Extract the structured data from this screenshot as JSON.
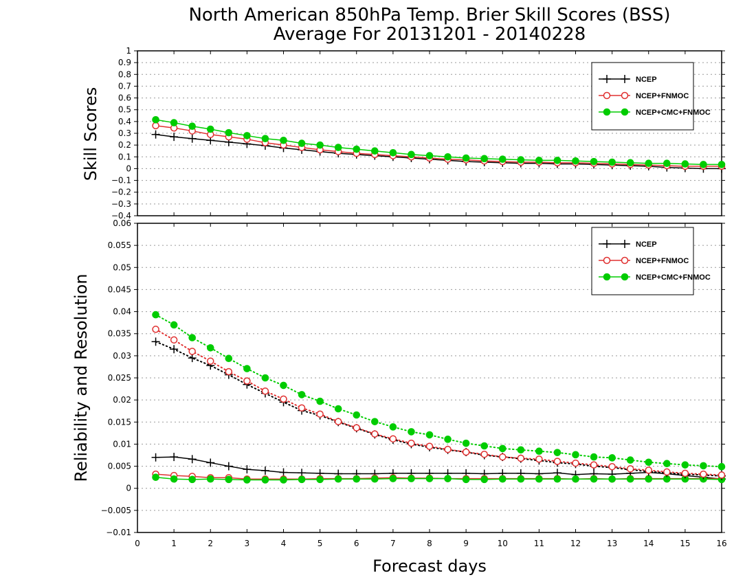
{
  "title_line1": "North American 850hPa Temp. Brier Skill Scores (BSS)",
  "title_line2": "Average For 20131201 - 20140228",
  "xlabel": "Forecast days",
  "colors": {
    "ncep": "#000000",
    "ncep_fnmoc": "#e03030",
    "ncep_cmc_fnmoc": "#00cc00",
    "grid": "#999999"
  },
  "chart_data": [
    {
      "type": "line",
      "ylabel": "Skill Scores",
      "xlim": [
        0,
        16
      ],
      "ylim": [
        -0.4,
        1.0
      ],
      "y_ticks": [
        "−0.4",
        "−0.3",
        "−0.2",
        "−0.1",
        "0",
        "0.1",
        "0.2",
        "0.3",
        "0.4",
        "0.5",
        "0.6",
        "0.7",
        "0.8",
        "0.9",
        "1"
      ],
      "x_ticks": [
        "0",
        "1",
        "2",
        "3",
        "4",
        "5",
        "6",
        "7",
        "8",
        "9",
        "10",
        "11",
        "12",
        "13",
        "14",
        "15",
        "16"
      ],
      "grid": "horizontal dotted",
      "legend_position": "top-right",
      "x": [
        0.5,
        1,
        1.5,
        2,
        2.5,
        3,
        3.5,
        4,
        4.5,
        5,
        5.5,
        6,
        6.5,
        7,
        7.5,
        8,
        8.5,
        9,
        9.5,
        10,
        10.5,
        11,
        11.5,
        12,
        12.5,
        13,
        13.5,
        14,
        14.5,
        15,
        15.5,
        16
      ],
      "series": [
        {
          "name": "NCEP",
          "style": "solid-plus",
          "color_key": "ncep",
          "values": [
            0.29,
            0.27,
            0.255,
            0.24,
            0.225,
            0.21,
            0.195,
            0.175,
            0.16,
            0.145,
            0.13,
            0.12,
            0.11,
            0.1,
            0.09,
            0.08,
            0.07,
            0.06,
            0.055,
            0.05,
            0.045,
            0.045,
            0.04,
            0.04,
            0.035,
            0.03,
            0.025,
            0.02,
            0.01,
            0.005,
            0.0,
            0.0
          ]
        },
        {
          "name": "NCEP+FNMOC",
          "style": "solid-circle-open",
          "color_key": "ncep_fnmoc",
          "values": [
            0.365,
            0.345,
            0.32,
            0.29,
            0.27,
            0.25,
            0.22,
            0.2,
            0.18,
            0.16,
            0.145,
            0.13,
            0.12,
            0.11,
            0.1,
            0.09,
            0.08,
            0.075,
            0.065,
            0.06,
            0.055,
            0.055,
            0.05,
            0.05,
            0.045,
            0.04,
            0.035,
            0.03,
            0.025,
            0.02,
            0.02,
            0.02
          ]
        },
        {
          "name": "NCEP+CMC+FNMOC",
          "style": "solid-circle-filled",
          "color_key": "ncep_cmc_fnmoc",
          "values": [
            0.415,
            0.39,
            0.36,
            0.335,
            0.305,
            0.28,
            0.255,
            0.24,
            0.215,
            0.2,
            0.18,
            0.165,
            0.15,
            0.135,
            0.12,
            0.11,
            0.1,
            0.09,
            0.085,
            0.08,
            0.075,
            0.07,
            0.07,
            0.065,
            0.06,
            0.055,
            0.05,
            0.045,
            0.045,
            0.04,
            0.035,
            0.035
          ]
        }
      ]
    },
    {
      "type": "line",
      "ylabel": "Reliability and Resolution",
      "xlim": [
        0,
        16
      ],
      "ylim": [
        -0.01,
        0.06
      ],
      "y_ticks": [
        "−0.01",
        "−0.005",
        "0",
        "0.005",
        "0.01",
        "0.015",
        "0.02",
        "0.025",
        "0.03",
        "0.035",
        "0.04",
        "0.045",
        "0.05",
        "0.055",
        "0.06"
      ],
      "x_ticks": [
        "0",
        "1",
        "2",
        "3",
        "4",
        "5",
        "6",
        "7",
        "8",
        "9",
        "10",
        "11",
        "12",
        "13",
        "14",
        "15",
        "16"
      ],
      "grid": "horizontal dotted",
      "legend_position": "top-right",
      "x": [
        0.5,
        1,
        1.5,
        2,
        2.5,
        3,
        3.5,
        4,
        4.5,
        5,
        5.5,
        6,
        6.5,
        7,
        7.5,
        8,
        8.5,
        9,
        9.5,
        10,
        10.5,
        11,
        11.5,
        12,
        12.5,
        13,
        13.5,
        14,
        14.5,
        15,
        15.5,
        16
      ],
      "series": [
        {
          "name": "NCEP",
          "style": "solid-plus",
          "color_key": "ncep",
          "legend": true,
          "values": [
            0.007,
            0.0071,
            0.0066,
            0.0058,
            0.005,
            0.0043,
            0.004,
            0.0036,
            0.0035,
            0.0034,
            0.0033,
            0.0033,
            0.0033,
            0.0034,
            0.0034,
            0.0034,
            0.0034,
            0.0034,
            0.0033,
            0.0034,
            0.0034,
            0.0033,
            0.0035,
            0.0031,
            0.0033,
            0.0032,
            0.0034,
            0.0036,
            0.0033,
            0.0029,
            0.0025,
            0.0021
          ]
        },
        {
          "name": "NCEP+FNMOC",
          "style": "solid-circle-open",
          "color_key": "ncep_fnmoc",
          "legend": true,
          "values": [
            0.0032,
            0.0029,
            0.0027,
            0.0024,
            0.0024,
            0.0021,
            0.0021,
            0.0021,
            0.0021,
            0.0022,
            0.0022,
            0.0022,
            0.0023,
            0.0024,
            0.0023,
            0.0023,
            0.0022,
            0.0022,
            0.0022,
            0.0022,
            0.0022,
            0.0022,
            0.0022,
            0.0021,
            0.0022,
            0.0021,
            0.0022,
            0.0022,
            0.0022,
            0.0022,
            0.0022,
            0.0022
          ]
        },
        {
          "name": "NCEP+CMC+FNMOC",
          "style": "solid-circle-filled",
          "color_key": "ncep_cmc_fnmoc",
          "legend": true,
          "values": [
            0.0025,
            0.0021,
            0.002,
            0.0021,
            0.002,
            0.0019,
            0.0019,
            0.0019,
            0.002,
            0.002,
            0.0021,
            0.0021,
            0.0021,
            0.0022,
            0.0022,
            0.0022,
            0.0022,
            0.002,
            0.002,
            0.0021,
            0.0021,
            0.0021,
            0.0021,
            0.0021,
            0.0021,
            0.0021,
            0.0021,
            0.0021,
            0.0021,
            0.0021,
            0.0021,
            0.002
          ]
        },
        {
          "name": "NCEP",
          "style": "dotted-plus",
          "color_key": "ncep",
          "legend": false,
          "values": [
            0.0332,
            0.0315,
            0.0295,
            0.0278,
            0.0257,
            0.0235,
            0.0215,
            0.0195,
            0.0176,
            0.0165,
            0.015,
            0.0136,
            0.0122,
            0.011,
            0.01,
            0.0093,
            0.0087,
            0.0082,
            0.0075,
            0.0071,
            0.0067,
            0.0063,
            0.0058,
            0.0055,
            0.005,
            0.0047,
            0.0042,
            0.0038,
            0.0035,
            0.0032,
            0.003,
            0.0028
          ]
        },
        {
          "name": "NCEP+FNMOC",
          "style": "dotted-circle-open",
          "color_key": "ncep_fnmoc",
          "legend": false,
          "values": [
            0.036,
            0.0336,
            0.031,
            0.0288,
            0.0264,
            0.0243,
            0.022,
            0.0202,
            0.0182,
            0.0168,
            0.0151,
            0.0137,
            0.0123,
            0.0112,
            0.0102,
            0.0095,
            0.0088,
            0.0082,
            0.0077,
            0.0071,
            0.0068,
            0.0066,
            0.0061,
            0.0057,
            0.0053,
            0.0049,
            0.0044,
            0.0041,
            0.0037,
            0.0034,
            0.0032,
            0.003
          ]
        },
        {
          "name": "NCEP+CMC+FNMOC",
          "style": "dotted-circle-filled",
          "color_key": "ncep_cmc_fnmoc",
          "legend": false,
          "values": [
            0.0393,
            0.037,
            0.0341,
            0.0318,
            0.0294,
            0.0271,
            0.025,
            0.0233,
            0.0212,
            0.0197,
            0.018,
            0.0166,
            0.0151,
            0.0139,
            0.0128,
            0.0121,
            0.0111,
            0.0102,
            0.0096,
            0.009,
            0.0087,
            0.0084,
            0.0081,
            0.0076,
            0.0071,
            0.0069,
            0.0064,
            0.0059,
            0.0056,
            0.0053,
            0.0051,
            0.0049
          ]
        }
      ]
    }
  ]
}
